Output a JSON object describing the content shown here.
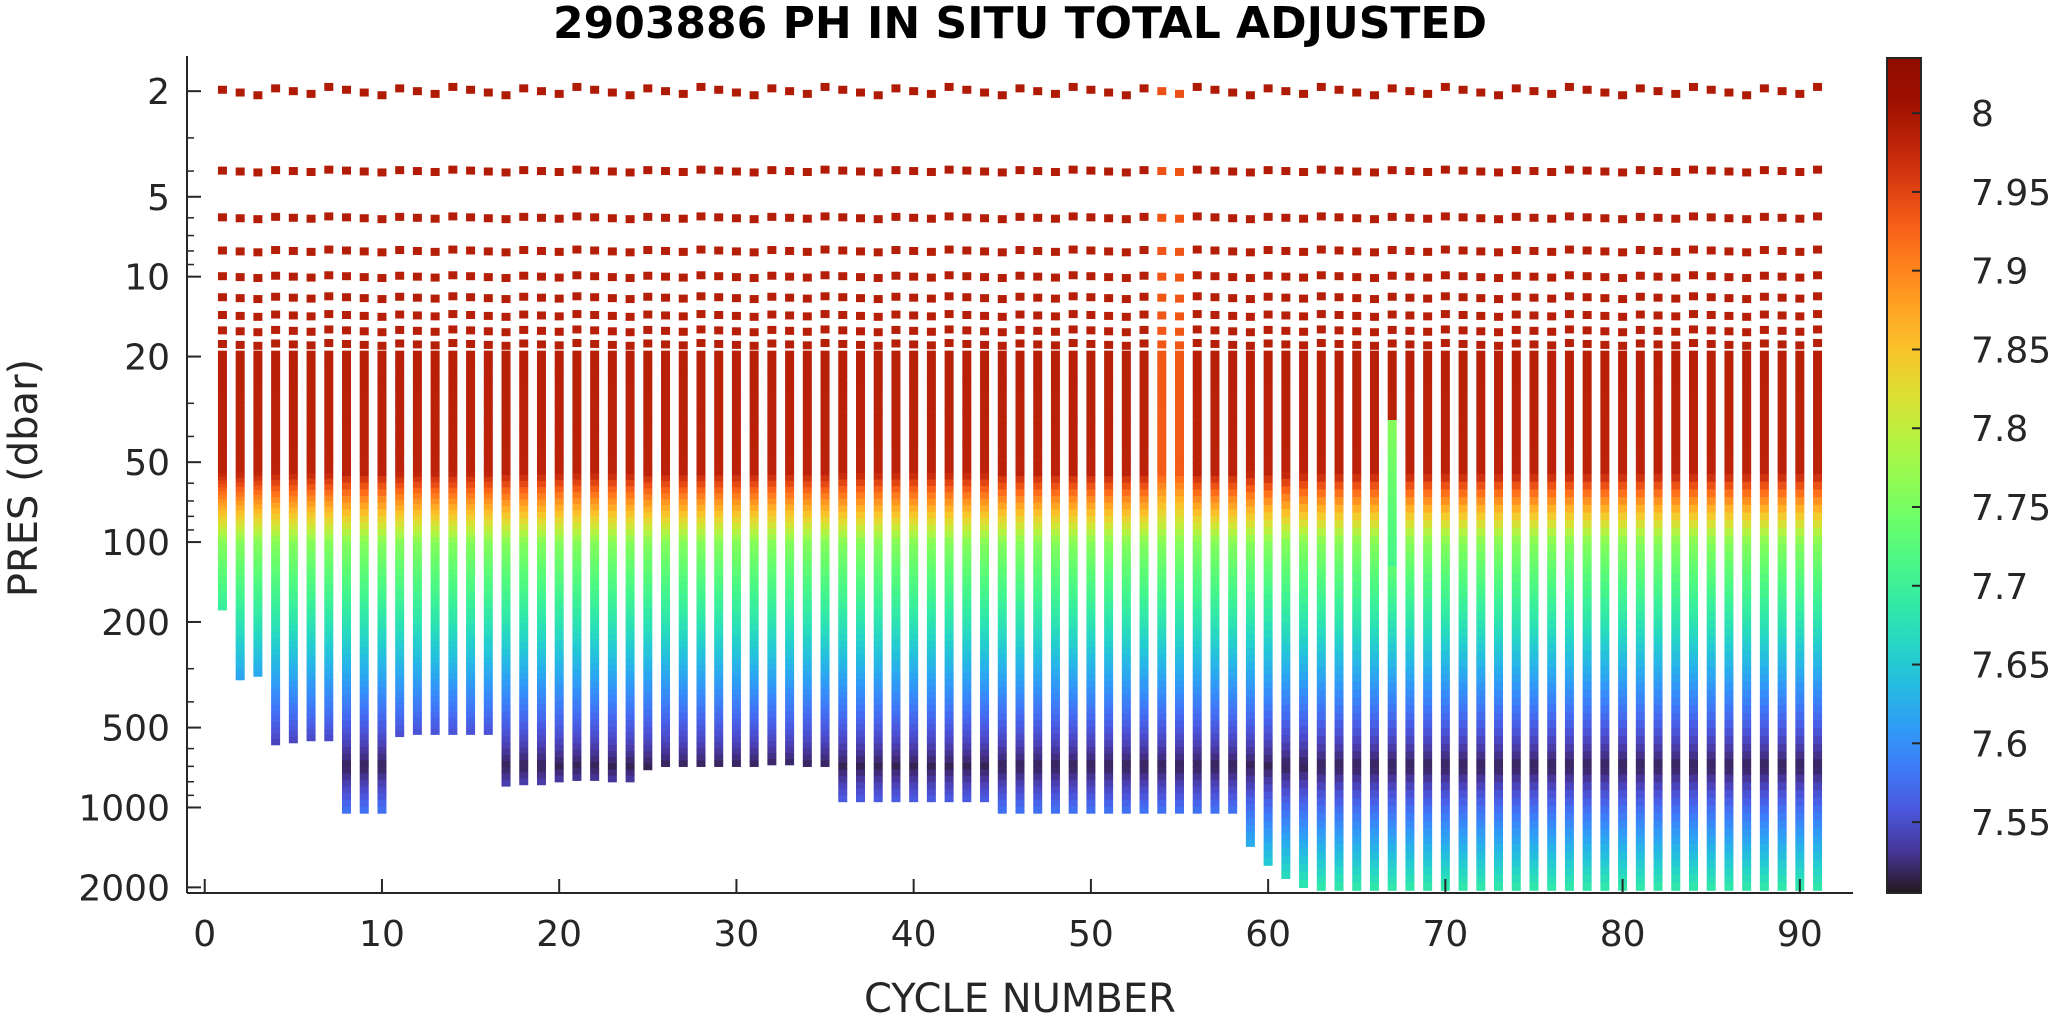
{
  "chart_data": {
    "type": "heatmap",
    "title": "2903886  PH IN SITU TOTAL ADJUSTED",
    "xlabel": "CYCLE NUMBER",
    "ylabel": "PRES (dbar)",
    "x_ticks": [
      0,
      10,
      20,
      30,
      40,
      50,
      60,
      70,
      80,
      90
    ],
    "xlim": [
      -1,
      93
    ],
    "y_scale": "log",
    "y_reversed": true,
    "ylim": [
      1.5,
      2100
    ],
    "y_ticks": [
      2,
      5,
      10,
      20,
      50,
      100,
      200,
      500,
      1000,
      2000
    ],
    "colorbar": {
      "colormap": "turbo",
      "limits": [
        7.505,
        8.035
      ],
      "ticks": [
        7.55,
        7.6,
        7.65,
        7.7,
        7.75,
        7.8,
        7.85,
        7.9,
        7.95,
        8
      ]
    },
    "cycles": {
      "first": 1,
      "last": 91
    },
    "max_pressure_by_cycle": [
      180,
      330,
      320,
      580,
      570,
      560,
      560,
      1050,
      1050,
      1050,
      540,
      530,
      530,
      530,
      530,
      530,
      830,
      820,
      820,
      800,
      790,
      790,
      800,
      800,
      720,
      700,
      700,
      700,
      700,
      700,
      700,
      690,
      690,
      700,
      700,
      950,
      950,
      950,
      950,
      950,
      950,
      950,
      950,
      950,
      1050,
      1050,
      1050,
      1050,
      1050,
      1050,
      1050,
      1050,
      1050,
      1050,
      1050,
      1050,
      1050,
      1050,
      1400,
      1650,
      1850,
      2000,
      2050,
      2050,
      2050,
      2050,
      2050,
      2050,
      2050,
      2050,
      2050,
      2050,
      2050,
      2050,
      2050,
      2050,
      2050,
      2050,
      2050,
      2050,
      2050,
      2050,
      2050,
      2050,
      2050,
      2050,
      2050,
      2050,
      2050,
      2050,
      2050
    ],
    "discrete_levels_dbar": [
      2,
      4,
      6,
      8,
      10,
      12,
      14,
      16,
      18
    ],
    "profile_model": {
      "surface_ph": 7.99,
      "upper_gradient_top_dbar": 55,
      "ph_at_100_dbar": 7.76,
      "ph_at_200_dbar": 7.68,
      "min_ph_dbar": 700,
      "min_ph": 7.515,
      "ph_at_2000_dbar": 7.685
    },
    "notable_cycles": [
      {
        "cycle": 54,
        "note": "shallower mixing, surface pH ~7.93"
      },
      {
        "cycle": 55,
        "note": "surface pH ~7.91"
      },
      {
        "cycle": 67,
        "note": "green water reaching ~40 dbar"
      }
    ]
  }
}
